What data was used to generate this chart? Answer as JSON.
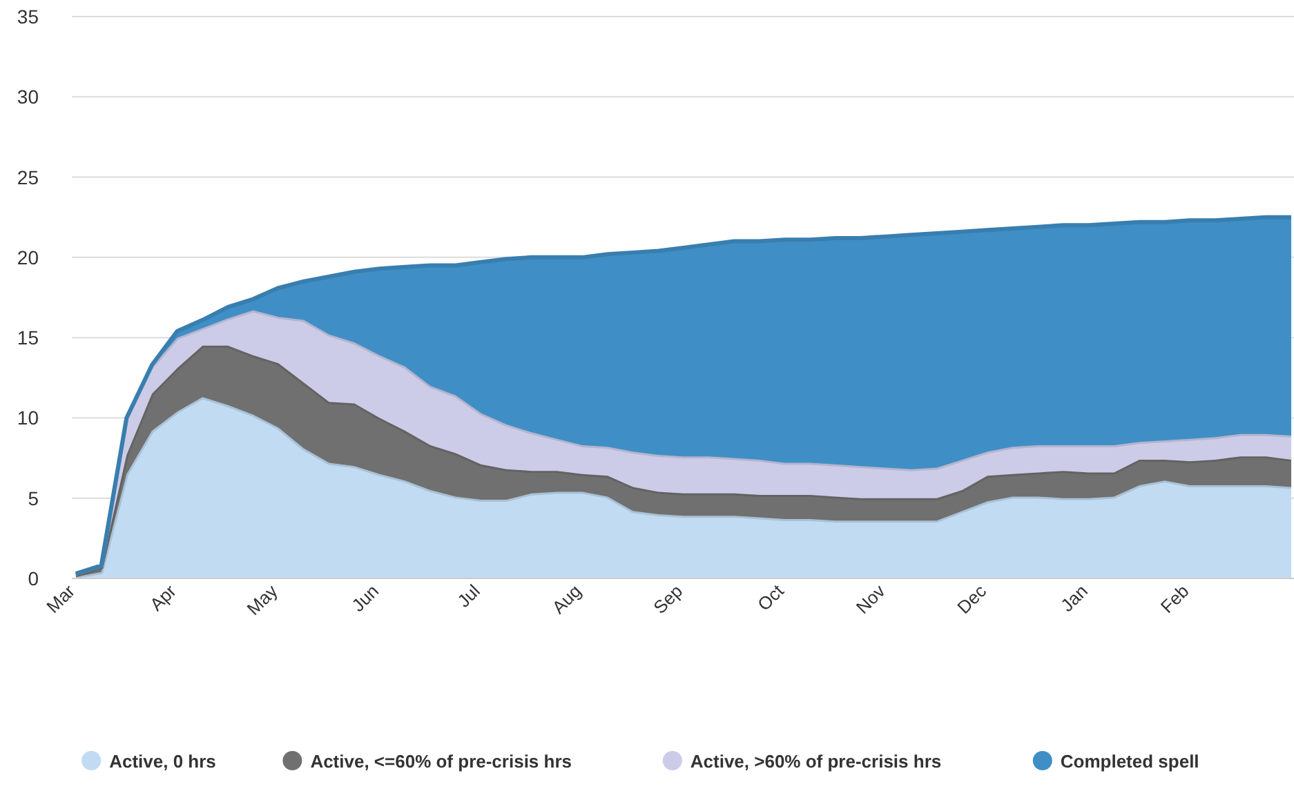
{
  "chart_data": {
    "type": "area",
    "stacked": true,
    "grid": "y",
    "legend": "bottom",
    "categories": [
      "Mar",
      null,
      null,
      null,
      "Apr",
      null,
      null,
      null,
      "May",
      null,
      null,
      null,
      "Jun",
      null,
      null,
      null,
      "Jul",
      null,
      null,
      null,
      "Aug",
      null,
      null,
      null,
      "Sep",
      null,
      null,
      null,
      "Oct",
      null,
      null,
      null,
      "Nov",
      null,
      null,
      null,
      "Dec",
      null,
      null,
      null,
      "Jan",
      null,
      null,
      null,
      "Feb",
      null,
      null,
      null,
      null
    ],
    "ylim": [
      0,
      35
    ],
    "yticks": [
      0,
      5,
      10,
      15,
      20,
      25,
      30,
      35
    ],
    "series": [
      {
        "name": "Active, 0 hrs",
        "color": "#c0dbf2",
        "values": [
          0.1,
          0.4,
          6.5,
          9.2,
          10.4,
          11.3,
          10.8,
          10.2,
          9.4,
          8.1,
          7.2,
          7.0,
          6.5,
          6.1,
          5.5,
          5.1,
          4.9,
          4.9,
          5.3,
          5.4,
          5.4,
          5.1,
          4.2,
          4.0,
          3.9,
          3.9,
          3.9,
          3.8,
          3.7,
          3.7,
          3.6,
          3.6,
          3.6,
          3.6,
          3.6,
          4.2,
          4.8,
          5.1,
          5.1,
          5.0,
          5.0,
          5.1,
          5.8,
          6.1,
          5.8,
          5.8,
          5.8,
          5.8,
          5.7
        ]
      },
      {
        "name": "Active, <=60% of pre-crisis hrs",
        "color": "#707070",
        "values": [
          0.1,
          0.3,
          1.2,
          2.3,
          2.7,
          3.2,
          3.7,
          3.7,
          4.0,
          4.1,
          3.8,
          3.9,
          3.5,
          3.1,
          2.8,
          2.7,
          2.2,
          1.9,
          1.4,
          1.3,
          1.1,
          1.3,
          1.5,
          1.4,
          1.4,
          1.4,
          1.4,
          1.4,
          1.5,
          1.5,
          1.5,
          1.4,
          1.4,
          1.4,
          1.4,
          1.3,
          1.6,
          1.4,
          1.5,
          1.7,
          1.6,
          1.5,
          1.6,
          1.3,
          1.5,
          1.6,
          1.8,
          1.8,
          1.7
        ]
      },
      {
        "name": "Active, >60% of pre-crisis hrs",
        "color": "#cccce8",
        "values": [
          0.1,
          0.1,
          2.3,
          1.7,
          1.9,
          1.1,
          1.7,
          2.8,
          2.9,
          3.9,
          4.2,
          3.8,
          3.9,
          4.0,
          3.7,
          3.6,
          3.2,
          2.8,
          2.4,
          2.0,
          1.8,
          1.8,
          2.2,
          2.3,
          2.3,
          2.3,
          2.2,
          2.2,
          2.0,
          2.0,
          2.0,
          2.0,
          1.9,
          1.8,
          1.9,
          1.9,
          1.5,
          1.7,
          1.7,
          1.6,
          1.7,
          1.7,
          1.1,
          1.2,
          1.4,
          1.4,
          1.4,
          1.4,
          1.5
        ]
      },
      {
        "name": "Completed spell",
        "color": "#3f8fc6",
        "values": [
          0,
          0,
          0,
          0.1,
          0.4,
          0.5,
          0.7,
          0.7,
          1.8,
          2.4,
          3.6,
          4.4,
          5.4,
          6.2,
          7.5,
          8.1,
          9.4,
          10.3,
          10.9,
          11.3,
          11.7,
          12.0,
          12.4,
          12.7,
          13.0,
          13.2,
          13.5,
          13.6,
          13.9,
          13.9,
          14.1,
          14.2,
          14.4,
          14.6,
          14.6,
          14.2,
          13.8,
          13.6,
          13.6,
          13.7,
          13.7,
          13.8,
          13.7,
          13.6,
          13.6,
          13.5,
          13.4,
          13.5,
          13.6
        ]
      }
    ]
  }
}
